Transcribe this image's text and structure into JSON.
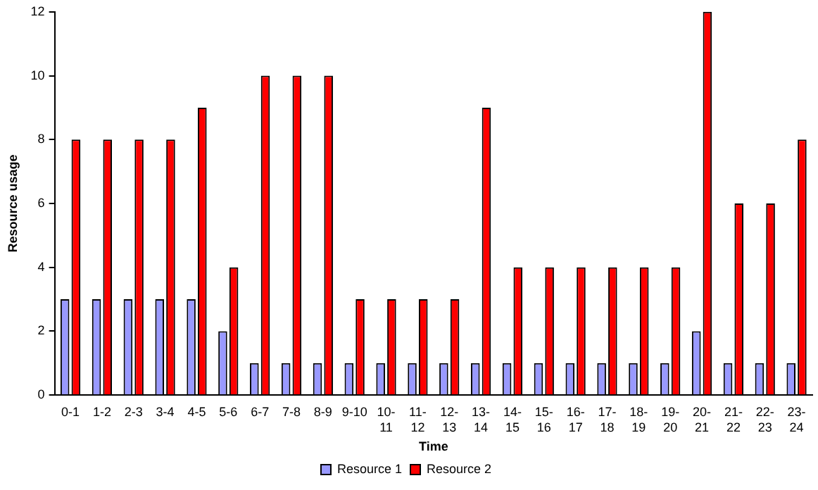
{
  "chart_data": {
    "type": "bar",
    "xlabel": "Time",
    "ylabel": "Resource usage",
    "categories": [
      "0-1",
      "1-2",
      "2-3",
      "3-4",
      "4-5",
      "5-6",
      "6-7",
      "7-8",
      "8-9",
      "9-10",
      "10-11",
      "11-12",
      "12-13",
      "13-14",
      "14-15",
      "15-16",
      "16-17",
      "17-18",
      "18-19",
      "19-20",
      "20-21",
      "21-22",
      "22-23",
      "23-24"
    ],
    "series": [
      {
        "name": "Resource 1",
        "color": "#9999ff",
        "values": [
          3,
          3,
          3,
          3,
          3,
          2,
          1,
          1,
          1,
          1,
          1,
          1,
          1,
          1,
          1,
          1,
          1,
          1,
          1,
          1,
          2,
          1,
          1,
          1
        ]
      },
      {
        "name": "Resource 2",
        "color": "#ff0000",
        "values": [
          8,
          8,
          8,
          8,
          9,
          4,
          10,
          10,
          10,
          3,
          3,
          3,
          3,
          9,
          4,
          4,
          4,
          4,
          4,
          4,
          12,
          6,
          6,
          8
        ]
      }
    ],
    "ylim": [
      0,
      12
    ],
    "yticks": [
      0,
      2,
      4,
      6,
      8,
      10,
      12
    ],
    "grid": false,
    "legend": "bottom"
  }
}
